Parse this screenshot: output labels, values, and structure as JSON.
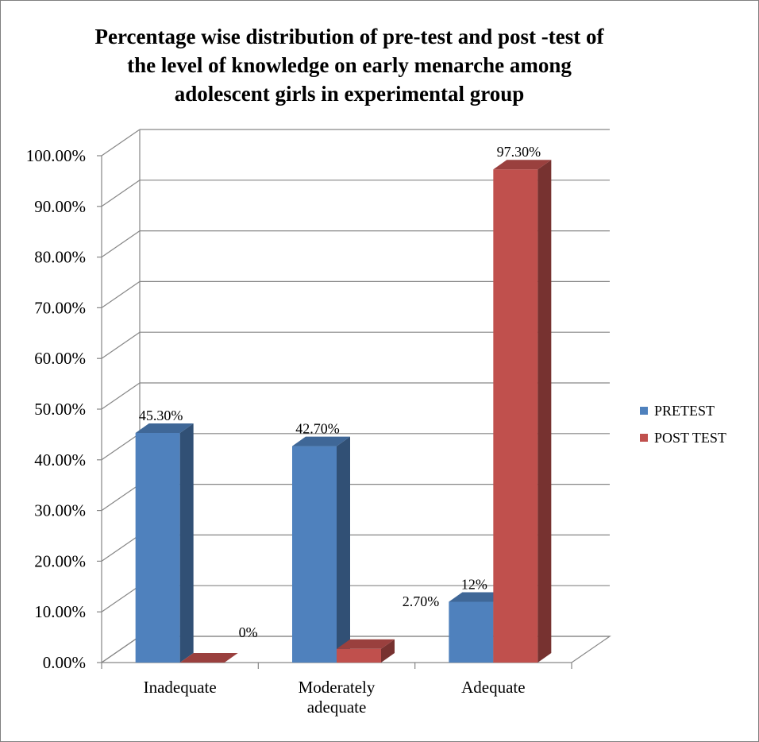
{
  "chart_data": {
    "type": "bar",
    "title_lines": [
      "Percentage wise distribution of pre-test and post -test of",
      "the level of knowledge on early menarche among",
      "adolescent girls in experimental group"
    ],
    "categories": [
      [
        "Inadequate"
      ],
      [
        "Moderately",
        "adequate"
      ],
      [
        "Adequate"
      ]
    ],
    "series": [
      {
        "name": "PRETEST",
        "values": [
          45.3,
          42.7,
          12
        ],
        "labels": [
          "45.30%",
          "42.70%",
          "12%"
        ]
      },
      {
        "name": "POST TEST",
        "values": [
          0,
          2.7,
          97.3
        ],
        "labels": [
          "0%",
          "2.70%",
          "97.30%"
        ]
      }
    ],
    "ylim": [
      0,
      100
    ],
    "yticks": [
      "0.00%",
      "10.00%",
      "20.00%",
      "30.00%",
      "40.00%",
      "50.00%",
      "60.00%",
      "70.00%",
      "80.00%",
      "90.00%",
      "100.00%"
    ],
    "grid": true,
    "legend_position": "right",
    "colors": {
      "PRETEST": "#4f81bd",
      "POST TEST": "#c0504d"
    }
  }
}
